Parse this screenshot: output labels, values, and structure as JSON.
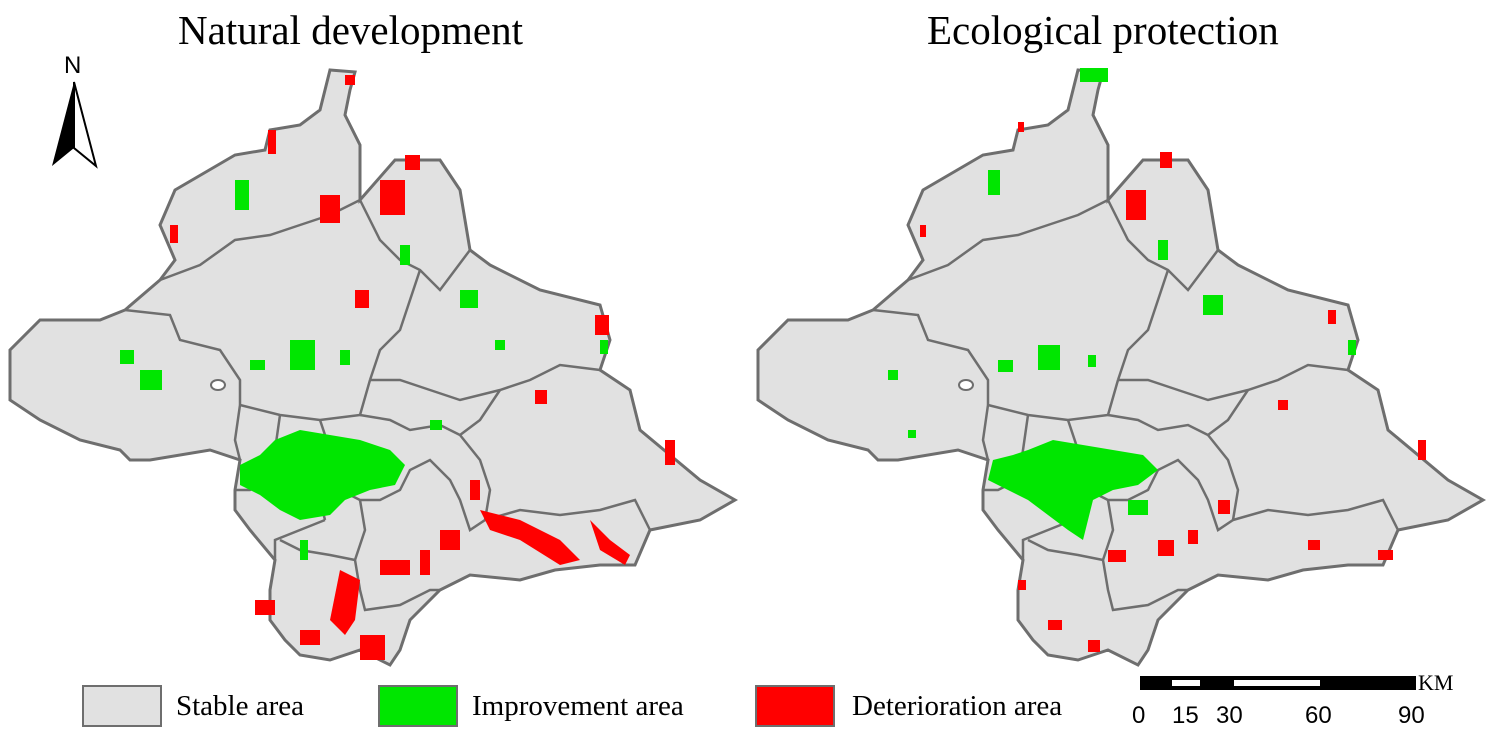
{
  "titles": {
    "left": "Natural development",
    "right": "Ecological protection"
  },
  "north_arrow": {
    "label": "N"
  },
  "legend": [
    {
      "label": "Stable area",
      "color": "#e1e1e1"
    },
    {
      "label": "Improvement area",
      "color": "#00e600"
    },
    {
      "label": "Deterioration area",
      "color": "#ff0000"
    }
  ],
  "scale_bar": {
    "unit": "KM",
    "ticks": [
      "0",
      "15",
      "30",
      "60",
      "90"
    ]
  },
  "colors": {
    "stable": "#e1e1e1",
    "improvement": "#00e600",
    "deterioration": "#ff0000",
    "boundary": "#6e6e6e"
  }
}
